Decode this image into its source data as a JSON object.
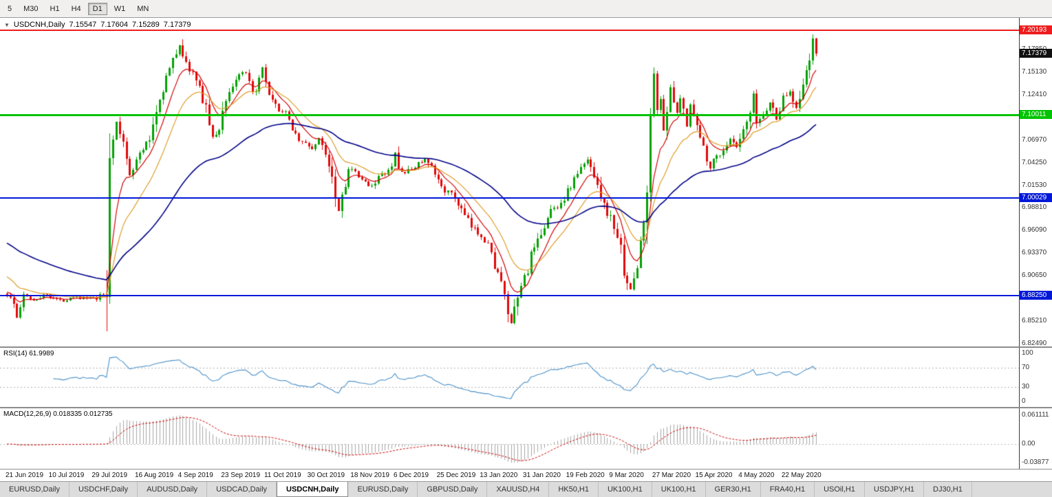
{
  "toolbar": {
    "timeframes": [
      {
        "label": "5",
        "active": false
      },
      {
        "label": "M30",
        "active": false
      },
      {
        "label": "H1",
        "active": false
      },
      {
        "label": "H4",
        "active": false
      },
      {
        "label": "D1",
        "active": true
      },
      {
        "label": "W1",
        "active": false
      },
      {
        "label": "MN",
        "active": false
      }
    ]
  },
  "chart": {
    "collapse_icon": "▼",
    "symbol_period": "USDCNH,Daily",
    "ohlc": {
      "open": "7.15547",
      "high": "7.17604",
      "low": "7.15289",
      "close": "7.17379"
    },
    "price_axis_labels": [
      "7.17850",
      "7.15130",
      "7.12410",
      "7.09690",
      "7.06970",
      "7.04250",
      "7.01530",
      "6.98810",
      "6.96090",
      "6.93370",
      "6.90650",
      "6.87930",
      "6.85210",
      "6.82490"
    ],
    "levels": [
      {
        "price": 7.20193,
        "label": "7.20193",
        "color": "#ee1c1c",
        "thickness": 2
      },
      {
        "price": 7.10011,
        "label": "7.10011",
        "color": "#00c400",
        "thickness": 3
      },
      {
        "price": 7.00029,
        "label": "7.00029",
        "color": "#0018d8",
        "thickness": 2
      },
      {
        "price": 6.8825,
        "label": "6.88250",
        "color": "#0018d8",
        "thickness": 2
      }
    ],
    "current_price": {
      "label": "7.17379",
      "value": 7.17379,
      "bg": "#101010"
    }
  },
  "rsi": {
    "header": "RSI(14) 61.9989",
    "line_color": "#4a90c8",
    "dotted_levels": [
      70,
      30
    ],
    "axis_labels": [
      {
        "text": "100",
        "value": 100
      },
      {
        "text": "70",
        "value": 70
      },
      {
        "text": "30",
        "value": 30
      },
      {
        "text": "0",
        "value": 0
      }
    ]
  },
  "macd": {
    "header": "MACD(12,26,9) 0.018335 0.012735",
    "axis_labels": [
      {
        "text": "0.061111",
        "value": 0.0611
      },
      {
        "text": "0.00",
        "value": 0
      },
      {
        "text": "-0.03877",
        "value": -0.0388
      }
    ]
  },
  "date_axis": {
    "labels": [
      "21 Jun 2019",
      "10 Jul 2019",
      "29 Jul 2019",
      "16 Aug 2019",
      "4 Sep 2019",
      "23 Sep 2019",
      "11 Oct 2019",
      "30 Oct 2019",
      "18 Nov 2019",
      "6 Dec 2019",
      "25 Dec 2019",
      "13 Jan 2020",
      "31 Jan 2020",
      "19 Feb 2020",
      "9 Mar 2020",
      "27 Mar 2020",
      "15 Apr 2020",
      "4 May 2020",
      "22 May 2020"
    ],
    "label_spacing_days": 13
  },
  "tabs": {
    "items": [
      "EURUSD,Daily",
      "USDCHF,Daily",
      "AUDUSD,Daily",
      "USDCAD,Daily",
      "USDCNH,Daily",
      "EURUSD,Daily",
      "GBPUSD,Daily",
      "XAUUSD,H4",
      "HK50,H1",
      "UK100,H1",
      "UK100,H1",
      "GER30,H1",
      "FRA40,H1",
      "USOil,H1",
      "USDJPY,H1",
      "DJ30,H1"
    ],
    "selected_index": 4
  },
  "chart_data": {
    "type": "candlestick",
    "symbol": "USDCNH",
    "period": "Daily",
    "bars": 245,
    "last_close": 7.17379,
    "price_range_shown": [
      6.8249,
      7.2019
    ],
    "candle_up_color": "#05a005",
    "candle_down_color": "#e00a0a",
    "price_waypoints": [
      [
        0,
        6.885
      ],
      [
        2,
        6.872
      ],
      [
        3,
        6.856
      ],
      [
        5,
        6.882
      ],
      [
        8,
        6.878
      ],
      [
        12,
        6.884
      ],
      [
        16,
        6.876
      ],
      [
        20,
        6.882
      ],
      [
        24,
        6.879
      ],
      [
        27,
        6.878
      ],
      [
        29,
        6.884
      ],
      [
        30,
        6.89
      ],
      [
        31,
        7.06
      ],
      [
        33,
        7.09
      ],
      [
        35,
        7.065
      ],
      [
        37,
        7.03
      ],
      [
        39,
        7.045
      ],
      [
        41,
        7.06
      ],
      [
        43,
        7.07
      ],
      [
        44,
        7.09
      ],
      [
        46,
        7.12
      ],
      [
        48,
        7.145
      ],
      [
        50,
        7.165
      ],
      [
        52,
        7.185
      ],
      [
        54,
        7.16
      ],
      [
        56,
        7.15
      ],
      [
        58,
        7.13
      ],
      [
        60,
        7.11
      ],
      [
        62,
        7.07
      ],
      [
        64,
        7.085
      ],
      [
        66,
        7.12
      ],
      [
        68,
        7.135
      ],
      [
        70,
        7.15
      ],
      [
        72,
        7.148
      ],
      [
        74,
        7.125
      ],
      [
        76,
        7.14
      ],
      [
        77,
        7.155
      ],
      [
        79,
        7.12
      ],
      [
        81,
        7.11
      ],
      [
        84,
        7.1
      ],
      [
        86,
        7.085
      ],
      [
        88,
        7.07
      ],
      [
        90,
        7.065
      ],
      [
        92,
        7.06
      ],
      [
        94,
        7.07
      ],
      [
        96,
        7.055
      ],
      [
        98,
        7.03
      ],
      [
        100,
        6.985
      ],
      [
        101,
        7.005
      ],
      [
        103,
        7.035
      ],
      [
        105,
        7.03
      ],
      [
        107,
        7.02
      ],
      [
        110,
        7.015
      ],
      [
        112,
        7.025
      ],
      [
        114,
        7.03
      ],
      [
        116,
        7.035
      ],
      [
        117,
        7.055
      ],
      [
        118,
        7.035
      ],
      [
        120,
        7.03
      ],
      [
        122,
        7.035
      ],
      [
        124,
        7.042
      ],
      [
        126,
        7.046
      ],
      [
        128,
        7.035
      ],
      [
        130,
        7.02
      ],
      [
        132,
        7.01
      ],
      [
        135,
        7.0
      ],
      [
        137,
        6.985
      ],
      [
        140,
        6.965
      ],
      [
        143,
        6.955
      ],
      [
        145,
        6.945
      ],
      [
        146,
        6.93
      ],
      [
        148,
        6.91
      ],
      [
        149,
        6.895
      ],
      [
        151,
        6.862
      ],
      [
        152,
        6.848
      ],
      [
        153,
        6.862
      ],
      [
        155,
        6.895
      ],
      [
        157,
        6.915
      ],
      [
        158,
        6.93
      ],
      [
        160,
        6.945
      ],
      [
        161,
        6.96
      ],
      [
        163,
        6.975
      ],
      [
        164,
        6.985
      ],
      [
        166,
        6.99
      ],
      [
        168,
        7.0
      ],
      [
        170,
        7.015
      ],
      [
        172,
        7.03
      ],
      [
        174,
        7.04
      ],
      [
        175,
        7.046
      ],
      [
        176,
        7.038
      ],
      [
        178,
        7.02
      ],
      [
        180,
        6.99
      ],
      [
        182,
        6.975
      ],
      [
        184,
        6.955
      ],
      [
        186,
        6.915
      ],
      [
        188,
        6.888
      ],
      [
        190,
        6.92
      ],
      [
        192,
        6.97
      ],
      [
        193,
        7.01
      ],
      [
        194,
        7.08
      ],
      [
        195,
        7.155
      ],
      [
        196,
        7.1
      ],
      [
        197,
        7.12
      ],
      [
        198,
        7.085
      ],
      [
        200,
        7.13
      ],
      [
        201,
        7.115
      ],
      [
        202,
        7.1
      ],
      [
        203,
        7.12
      ],
      [
        204,
        7.105
      ],
      [
        205,
        7.09
      ],
      [
        206,
        7.115
      ],
      [
        207,
        7.1
      ],
      [
        208,
        7.085
      ],
      [
        210,
        7.06
      ],
      [
        212,
        7.038
      ],
      [
        214,
        7.05
      ],
      [
        216,
        7.058
      ],
      [
        218,
        7.07
      ],
      [
        220,
        7.06
      ],
      [
        222,
        7.078
      ],
      [
        224,
        7.1
      ],
      [
        225,
        7.122
      ],
      [
        226,
        7.09
      ],
      [
        228,
        7.1
      ],
      [
        230,
        7.115
      ],
      [
        232,
        7.096
      ],
      [
        234,
        7.12
      ],
      [
        236,
        7.128
      ],
      [
        238,
        7.11
      ],
      [
        240,
        7.14
      ],
      [
        242,
        7.162
      ],
      [
        243,
        7.192
      ],
      [
        244,
        7.17379
      ]
    ],
    "moving_averages": [
      {
        "period": 8,
        "color": "#d40000",
        "width": 1.2,
        "seed": 6.888
      },
      {
        "period": 17,
        "color": "#de9b26",
        "width": 1.2,
        "seed": 6.908
      },
      {
        "period": 55,
        "color": "#000088",
        "width": 1.6,
        "seed": 6.948
      }
    ],
    "indicators": {
      "rsi_period": 14,
      "macd": [
        12,
        26,
        9
      ]
    }
  }
}
